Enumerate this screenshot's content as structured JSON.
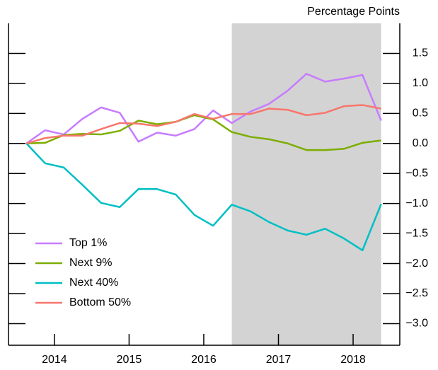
{
  "chart_data": {
    "type": "line",
    "y_axis_title": "Percentage Points",
    "x": [
      2014,
      2014.25,
      2014.5,
      2014.75,
      2015,
      2015.25,
      2015.5,
      2015.75,
      2016,
      2016.25,
      2016.5,
      2016.75,
      2017,
      2017.25,
      2017.5,
      2017.75,
      2018,
      2018.25,
      2018.5,
      2018.75
    ],
    "series": [
      {
        "name": "Top 1%",
        "color": "#c77cff",
        "values": [
          0,
          0.22,
          0.15,
          0.41,
          0.6,
          0.51,
          0.03,
          0.18,
          0.13,
          0.24,
          0.55,
          0.34,
          0.53,
          0.66,
          0.88,
          1.16,
          1.03,
          1.08,
          1.14,
          0.38
        ]
      },
      {
        "name": "Next 9%",
        "color": "#7cae00",
        "values": [
          0,
          0.01,
          0.14,
          0.16,
          0.15,
          0.21,
          0.38,
          0.32,
          0.36,
          0.47,
          0.4,
          0.19,
          0.11,
          0.07,
          0,
          -0.11,
          -0.11,
          -0.09,
          0.01,
          0.05
        ]
      },
      {
        "name": "Next 40%",
        "color": "#00bfc4",
        "values": [
          0,
          -0.33,
          -0.4,
          -0.69,
          -0.99,
          -1.06,
          -0.76,
          -0.76,
          -0.85,
          -1.19,
          -1.37,
          -1.02,
          -1.13,
          -1.31,
          -1.45,
          -1.52,
          -1.42,
          -1.58,
          -1.78,
          -1.01
        ]
      },
      {
        "name": "Bottom 50%",
        "color": "#f8766d",
        "values": [
          0,
          0.09,
          0.13,
          0.13,
          0.24,
          0.34,
          0.33,
          0.29,
          0.36,
          0.49,
          0.41,
          0.49,
          0.49,
          0.58,
          0.56,
          0.47,
          0.51,
          0.62,
          0.64,
          0.58
        ]
      }
    ],
    "shade": [
      2016.75,
      2018.75
    ],
    "shade_color": "#d3d3d3",
    "xlim": [
      2013.76,
      2019.0
    ],
    "xticks": [
      {
        "value": 2014.375,
        "label": "2014"
      },
      {
        "value": 2015.375,
        "label": "2015"
      },
      {
        "value": 2016.375,
        "label": "2016"
      },
      {
        "value": 2017.375,
        "label": "2017"
      },
      {
        "value": 2018.375,
        "label": "2018"
      }
    ],
    "ylim": [
      -3.36,
      2.0
    ],
    "yticks": [
      {
        "value": 1.5,
        "label": "1.5"
      },
      {
        "value": 1.0,
        "label": "1.0"
      },
      {
        "value": 0.5,
        "label": "0.5"
      },
      {
        "value": 0.0,
        "label": "0.0"
      },
      {
        "value": -0.5,
        "label": "−0.5"
      },
      {
        "value": -1.0,
        "label": "−1.0"
      },
      {
        "value": -1.5,
        "label": "−1.5"
      },
      {
        "value": -2.0,
        "label": "−2.0"
      },
      {
        "value": -2.5,
        "label": "−2.5"
      },
      {
        "value": -3.0,
        "label": "−3.0"
      }
    ],
    "legend": "bottom-left"
  }
}
